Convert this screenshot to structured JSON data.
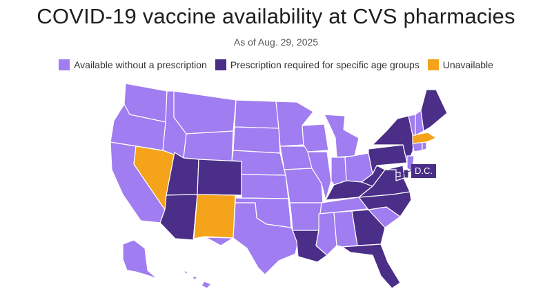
{
  "title": "COVID-19 vaccine availability at CVS pharmacies",
  "subtitle": "As of Aug. 29, 2025",
  "colors": {
    "available": "#a07df0",
    "prescription": "#4a2e88",
    "unavailable": "#f5a31a"
  },
  "legend": [
    {
      "key": "available",
      "label": "Available without a prescription"
    },
    {
      "key": "prescription",
      "label": "Prescription required for specific age groups"
    },
    {
      "key": "unavailable",
      "label": "Unavailable"
    }
  ],
  "dc_label": "D.C.",
  "states": {
    "WA": "available",
    "OR": "available",
    "CA": "available",
    "NV": "unavailable",
    "ID": "available",
    "MT": "available",
    "WY": "available",
    "UT": "prescription",
    "AZ": "prescription",
    "CO": "prescription",
    "NM": "unavailable",
    "ND": "available",
    "SD": "available",
    "NE": "available",
    "KS": "available",
    "OK": "available",
    "TX": "available",
    "MN": "available",
    "IA": "available",
    "MO": "available",
    "AR": "available",
    "LA": "prescription",
    "WI": "available",
    "IL": "available",
    "MS": "available",
    "MI": "available",
    "IN": "available",
    "KY": "prescription",
    "TN": "available",
    "AL": "available",
    "OH": "available",
    "WV": "prescription",
    "VA": "prescription",
    "NC": "prescription",
    "SC": "available",
    "GA": "prescription",
    "FL": "prescription",
    "PA": "prescription",
    "NY": "prescription",
    "VT": "available",
    "NH": "available",
    "ME": "prescription",
    "MA": "unavailable",
    "RI": "available",
    "CT": "available",
    "NJ": "available",
    "DE": "prescription",
    "MD": "prescription",
    "DC": "prescription",
    "AK": "available",
    "HI": "available"
  }
}
